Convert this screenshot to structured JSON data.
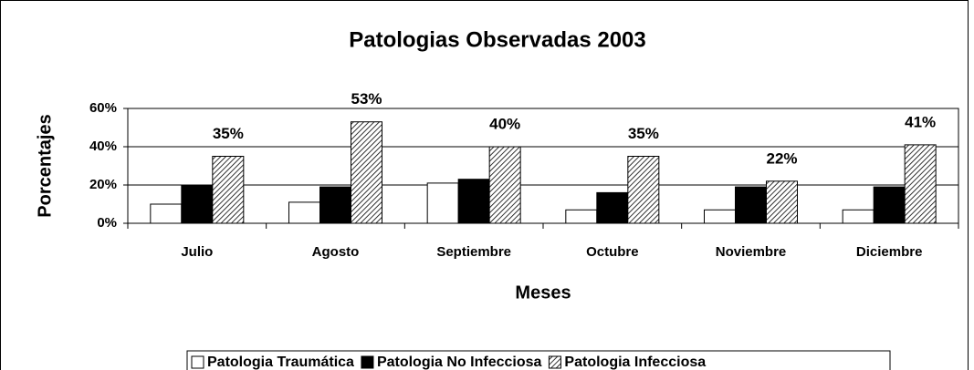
{
  "chart_data": {
    "type": "bar",
    "title": "Patologias Observadas 2003",
    "x_label": "Meses",
    "y_label": "Porcentajes",
    "categories": [
      "Julio",
      "Agosto",
      "Septiembre",
      "Octubre",
      "Noviembre",
      "Diciembre"
    ],
    "series": [
      {
        "name": "Patologia Traumática",
        "color": "#ffffff",
        "values": [
          10,
          11,
          21,
          7,
          7,
          7
        ]
      },
      {
        "name": "Patologia No Infecciosa",
        "color": "#000000",
        "values": [
          20,
          19,
          23,
          16,
          19,
          19
        ]
      },
      {
        "name": "Patologia Infecciosa",
        "color": "#000000",
        "pattern": "diagonal",
        "values": [
          35,
          53,
          40,
          35,
          22,
          41
        ],
        "value_labels": [
          "35%",
          "53%",
          "40%",
          "35%",
          "22%",
          "41%"
        ]
      }
    ],
    "ylim": [
      0,
      60
    ],
    "yticks": [
      {
        "value": 0,
        "label": "0%"
      },
      {
        "value": 20,
        "label": "20%"
      },
      {
        "value": 40,
        "label": "40%"
      },
      {
        "value": 60,
        "label": "60%"
      }
    ],
    "grid": true,
    "legend": "bottom"
  }
}
